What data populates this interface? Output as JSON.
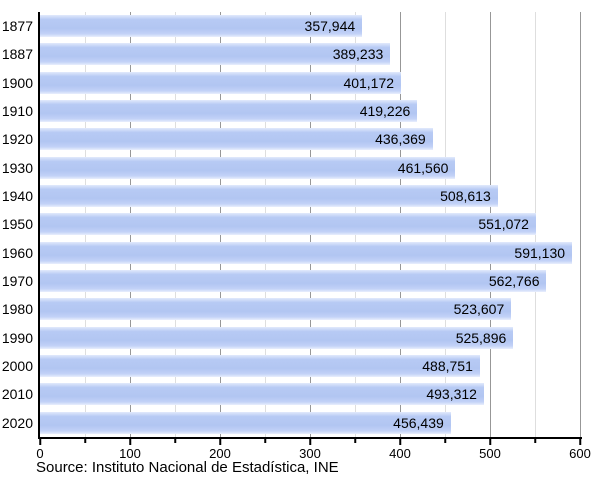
{
  "chart_data": {
    "type": "bar",
    "orientation": "horizontal",
    "title": "",
    "categories": [
      "1877",
      "1887",
      "1900",
      "1910",
      "1920",
      "1930",
      "1940",
      "1950",
      "1960",
      "1970",
      "1980",
      "1990",
      "2000",
      "2010",
      "2020"
    ],
    "values": [
      357944,
      389233,
      401172,
      419226,
      436369,
      461560,
      508613,
      551072,
      591130,
      562766,
      523607,
      525896,
      488751,
      493312,
      456439
    ],
    "value_labels": [
      "357,944",
      "389,233",
      "401,172",
      "419,226",
      "436,369",
      "461,560",
      "508,613",
      "551,072",
      "591,130",
      "562,766",
      "523,607",
      "525,896",
      "488,751",
      "493,312",
      "456,439"
    ],
    "xlabel": "",
    "ylabel": "",
    "xlim": [
      0,
      600
    ],
    "x_major_step": 100,
    "x_minor_step": 50,
    "x_tick_labels": [
      "0",
      "100",
      "200",
      "300",
      "400",
      "500",
      "600"
    ],
    "axis_unit_divisor": 1000,
    "grid": "vertical major and minor",
    "legend": "none"
  },
  "source_note": "Source: Instituto Nacional de Estadística, INE",
  "colors": {
    "bar": "#b2c6f2",
    "bar_highlight": "#e2eafc",
    "grid_major": "#979797",
    "grid_minor": "#dedede",
    "axis": "#000000",
    "text": "#000000",
    "background": "#ffffff"
  }
}
